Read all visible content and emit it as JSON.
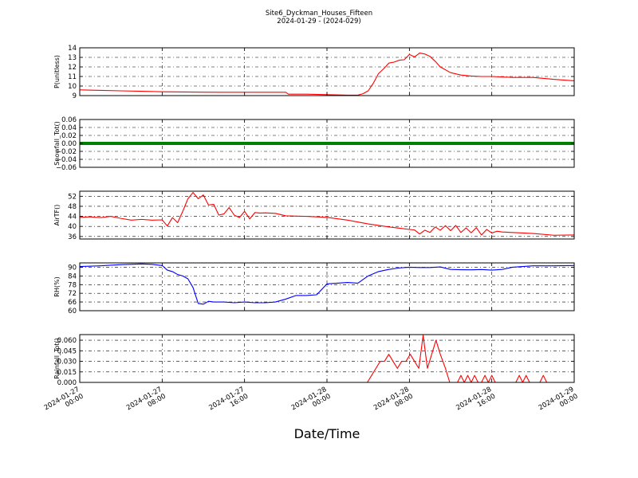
{
  "figure": {
    "title_line1": "Site6_Dyckman_Houses_Fifteen",
    "title_line2": "2024-01-29 - (2024-029)",
    "xlabel": "Date/Time"
  },
  "chart_data": {
    "type": "line",
    "grid": true,
    "xlim": [
      "2024-01-27 00:00",
      "2024-01-29 00:00"
    ],
    "x_ticks": [
      {
        "line1": "2024-01-27",
        "line2": "00:00",
        "value": "2024-01-27 00:00"
      },
      {
        "line1": "2024-01-27",
        "line2": "08:00",
        "value": "2024-01-27 08:00"
      },
      {
        "line1": "2024-01-27",
        "line2": "16:00",
        "value": "2024-01-27 16:00"
      },
      {
        "line1": "2024-01-28",
        "line2": "00:00",
        "value": "2024-01-28 00:00"
      },
      {
        "line1": "2024-01-28",
        "line2": "08:00",
        "value": "2024-01-28 08:00"
      },
      {
        "line1": "2024-01-28",
        "line2": "16:00",
        "value": "2024-01-28 16:00"
      },
      {
        "line1": "2024-01-29",
        "line2": "00:00",
        "value": "2024-01-29 00:00"
      }
    ],
    "panels": [
      {
        "id": "pressure",
        "ylabel": "P(unitless)",
        "ylim": [
          9,
          14
        ],
        "yticks": [
          9,
          10,
          11,
          12,
          13,
          14
        ],
        "ytick_labels": [
          "9",
          "10",
          "11",
          "12",
          "13",
          "14"
        ],
        "color": "#ff0000",
        "style": "line",
        "series": [
          {
            "x": [
              "2024-01-27 00:00",
              "2024-01-27 02:00",
              "2024-01-27 04:00",
              "2024-01-27 06:00",
              "2024-01-27 08:00",
              "2024-01-27 10:00",
              "2024-01-27 12:00",
              "2024-01-27 14:00",
              "2024-01-27 16:00",
              "2024-01-27 18:00",
              "2024-01-27 20:00",
              "2024-01-27 20:15",
              "2024-01-27 22:00",
              "2024-01-28 00:00",
              "2024-01-28 02:00",
              "2024-01-28 03:00",
              "2024-01-28 03:30",
              "2024-01-28 04:00",
              "2024-01-28 04:30",
              "2024-01-28 05:00",
              "2024-01-28 05:30",
              "2024-01-28 06:00",
              "2024-01-28 06:30",
              "2024-01-28 07:00",
              "2024-01-28 07:30",
              "2024-01-28 08:00",
              "2024-01-28 08:30",
              "2024-01-28 09:00",
              "2024-01-28 09:30",
              "2024-01-28 10:00",
              "2024-01-28 10:30",
              "2024-01-28 11:00",
              "2024-01-28 12:00",
              "2024-01-28 13:00",
              "2024-01-28 14:00",
              "2024-01-28 15:00",
              "2024-01-28 16:00",
              "2024-01-28 18:00",
              "2024-01-28 20:00",
              "2024-01-28 22:00",
              "2024-01-29 00:00"
            ],
            "y": [
              9.6,
              9.55,
              9.5,
              9.45,
              9.4,
              9.38,
              9.36,
              9.35,
              9.35,
              9.35,
              9.35,
              9.15,
              9.15,
              9.1,
              9.05,
              9.05,
              9.2,
              9.5,
              10.3,
              11.3,
              11.8,
              12.4,
              12.5,
              12.7,
              12.75,
              13.3,
              13.05,
              13.45,
              13.35,
              13.1,
              12.6,
              12.0,
              11.4,
              11.15,
              11.05,
              11.0,
              11.0,
              10.9,
              10.9,
              10.7,
              10.55
            ]
          }
        ]
      },
      {
        "id": "snowfall",
        "ylabel": "Snowfall_Tot()",
        "ylim": [
          -0.06,
          0.06
        ],
        "yticks": [
          -0.06,
          -0.04,
          -0.02,
          0.0,
          0.02,
          0.04,
          0.06
        ],
        "ytick_labels": [
          "−0.06",
          "−0.04",
          "−0.02",
          "0.00",
          "0.02",
          "0.04",
          "0.06"
        ],
        "color": "#008000",
        "style": "thick",
        "series": [
          {
            "x": [
              "2024-01-27 00:00",
              "2024-01-29 00:00"
            ],
            "y": [
              0.0,
              0.0
            ]
          }
        ]
      },
      {
        "id": "airtemp",
        "ylabel": "AirTF()",
        "ylim": [
          35,
          54
        ],
        "yticks": [
          36,
          40,
          44,
          48,
          52
        ],
        "ytick_labels": [
          "36",
          "40",
          "44",
          "48",
          "52"
        ],
        "color": "#ff0000",
        "style": "line",
        "series": [
          {
            "x": [
              "2024-01-27 00:00",
              "2024-01-27 01:00",
              "2024-01-27 02:00",
              "2024-01-27 03:00",
              "2024-01-27 04:00",
              "2024-01-27 05:00",
              "2024-01-27 06:00",
              "2024-01-27 07:00",
              "2024-01-27 08:00",
              "2024-01-27 08:30",
              "2024-01-27 09:00",
              "2024-01-27 09:30",
              "2024-01-27 10:00",
              "2024-01-27 10:30",
              "2024-01-27 11:00",
              "2024-01-27 11:30",
              "2024-01-27 12:00",
              "2024-01-27 12:30",
              "2024-01-27 13:00",
              "2024-01-27 13:30",
              "2024-01-27 14:00",
              "2024-01-27 14:30",
              "2024-01-27 15:00",
              "2024-01-27 15:30",
              "2024-01-27 16:00",
              "2024-01-27 16:30",
              "2024-01-27 17:00",
              "2024-01-27 17:30",
              "2024-01-27 18:00",
              "2024-01-27 19:00",
              "2024-01-27 20:00",
              "2024-01-27 22:00",
              "2024-01-28 00:00",
              "2024-01-28 02:00",
              "2024-01-28 04:00",
              "2024-01-28 06:00",
              "2024-01-28 08:00",
              "2024-01-28 08:30",
              "2024-01-28 09:00",
              "2024-01-28 09:30",
              "2024-01-28 10:00",
              "2024-01-28 10:30",
              "2024-01-28 11:00",
              "2024-01-28 11:30",
              "2024-01-28 12:00",
              "2024-01-28 12:30",
              "2024-01-28 13:00",
              "2024-01-28 13:30",
              "2024-01-28 14:00",
              "2024-01-28 14:30",
              "2024-01-28 15:00",
              "2024-01-28 15:30",
              "2024-01-28 16:00",
              "2024-01-28 16:30",
              "2024-01-28 17:00",
              "2024-01-28 18:00",
              "2024-01-28 20:00",
              "2024-01-28 22:00",
              "2024-01-29 00:00"
            ],
            "y": [
              43.6,
              43.8,
              43.5,
              44.0,
              43.2,
              42.5,
              42.8,
              42.5,
              42.6,
              40.2,
              43.5,
              41.5,
              46.0,
              51.0,
              53.5,
              51.0,
              52.5,
              48.5,
              48.8,
              44.5,
              45.0,
              47.5,
              44.5,
              43.5,
              46.0,
              43.0,
              45.5,
              45.3,
              45.4,
              45.2,
              44.2,
              44.0,
              43.6,
              42.5,
              41.0,
              39.8,
              38.8,
              38.6,
              37.0,
              38.5,
              37.6,
              39.8,
              38.5,
              40.3,
              38.3,
              40.4,
              37.6,
              39.4,
              37.5,
              39.5,
              36.6,
              38.8,
              37.4,
              38.1,
              37.8,
              37.6,
              37.2,
              36.5,
              36.6
            ]
          }
        ]
      },
      {
        "id": "rh",
        "ylabel": "RH(%)",
        "ylim": [
          60,
          93
        ],
        "yticks": [
          60,
          66,
          72,
          78,
          84,
          90
        ],
        "ytick_labels": [
          "60",
          "66",
          "72",
          "78",
          "84",
          "90"
        ],
        "color": "#0000ff",
        "style": "line",
        "series": [
          {
            "x": [
              "2024-01-27 00:00",
              "2024-01-27 02:00",
              "2024-01-27 04:00",
              "2024-01-27 06:00",
              "2024-01-27 07:00",
              "2024-01-27 08:00",
              "2024-01-27 08:30",
              "2024-01-27 09:00",
              "2024-01-27 09:30",
              "2024-01-27 10:00",
              "2024-01-27 10:30",
              "2024-01-27 11:00",
              "2024-01-27 11:30",
              "2024-01-27 12:00",
              "2024-01-27 12:30",
              "2024-01-27 13:00",
              "2024-01-27 14:00",
              "2024-01-27 15:00",
              "2024-01-27 16:00",
              "2024-01-27 17:00",
              "2024-01-27 18:00",
              "2024-01-27 19:00",
              "2024-01-27 20:00",
              "2024-01-27 21:00",
              "2024-01-27 22:00",
              "2024-01-27 23:00",
              "2024-01-28 00:00",
              "2024-01-28 01:00",
              "2024-01-28 02:00",
              "2024-01-28 03:00",
              "2024-01-28 04:00",
              "2024-01-28 05:00",
              "2024-01-28 06:00",
              "2024-01-28 07:00",
              "2024-01-28 08:00",
              "2024-01-28 09:00",
              "2024-01-28 10:00",
              "2024-01-28 11:00",
              "2024-01-28 12:00",
              "2024-01-28 13:00",
              "2024-01-28 14:00",
              "2024-01-28 15:00",
              "2024-01-28 16:00",
              "2024-01-28 17:00",
              "2024-01-28 18:00",
              "2024-01-28 20:00",
              "2024-01-28 22:00",
              "2024-01-29 00:00"
            ],
            "y": [
              90.5,
              91.0,
              91.8,
              92.3,
              92.0,
              91.2,
              88.0,
              87.0,
              85.0,
              84.0,
              82.0,
              76.0,
              65.0,
              64.5,
              66.5,
              66.0,
              66.0,
              65.5,
              66.0,
              65.5,
              65.5,
              66.0,
              68.0,
              70.5,
              70.5,
              71.0,
              78.5,
              79.0,
              79.5,
              79.0,
              84.0,
              87.0,
              88.5,
              89.5,
              90.0,
              89.8,
              89.8,
              90.2,
              88.5,
              88.3,
              88.2,
              88.4,
              88.0,
              88.5,
              90.0,
              91.0,
              91.0,
              91.2
            ]
          }
        ]
      },
      {
        "id": "rainfall",
        "ylabel": "Rainfall_Tot()",
        "ylim": [
          0,
          0.068
        ],
        "yticks": [
          0.0,
          0.015,
          0.03,
          0.045,
          0.06
        ],
        "ytick_labels": [
          "0.000",
          "0.015",
          "0.030",
          "0.045",
          "0.060"
        ],
        "color": "#ff0000",
        "style": "line",
        "series": [
          {
            "x": [
              "2024-01-27 00:00",
              "2024-01-28 03:55",
              "2024-01-28 04:20",
              "2024-01-28 04:45",
              "2024-01-28 05:10",
              "2024-01-28 05:35",
              "2024-01-28 06:00",
              "2024-01-28 06:25",
              "2024-01-28 06:50",
              "2024-01-28 07:15",
              "2024-01-28 07:40",
              "2024-01-28 08:05",
              "2024-01-28 08:30",
              "2024-01-28 08:55",
              "2024-01-28 09:20",
              "2024-01-28 09:45",
              "2024-01-28 10:10",
              "2024-01-28 10:35",
              "2024-01-28 11:00",
              "2024-01-28 11:30",
              "2024-01-28 11:55",
              "2024-01-28 12:20",
              "2024-01-28 12:40",
              "2024-01-28 13:00",
              "2024-01-28 13:20",
              "2024-01-28 13:40",
              "2024-01-28 14:00",
              "2024-01-28 14:20",
              "2024-01-28 14:40",
              "2024-01-28 15:00",
              "2024-01-28 15:20",
              "2024-01-28 15:40",
              "2024-01-28 16:00",
              "2024-01-28 16:20",
              "2024-01-28 16:40",
              "2024-01-28 18:20",
              "2024-01-28 18:40",
              "2024-01-28 19:00",
              "2024-01-28 19:20",
              "2024-01-28 19:40",
              "2024-01-28 20:40",
              "2024-01-28 21:00",
              "2024-01-28 21:20",
              "2024-01-29 00:00"
            ],
            "y": [
              0,
              0,
              0.01,
              0.02,
              0.03,
              0.03,
              0.04,
              0.03,
              0.02,
              0.03,
              0.03,
              0.04,
              0.03,
              0.02,
              0.067,
              0.02,
              0.04,
              0.06,
              0.04,
              0.02,
              0.0,
              0.0,
              0.0,
              0.01,
              0.0,
              0.01,
              0.0,
              0.01,
              0.0,
              0.0,
              0.01,
              0.0,
              0.01,
              0.0,
              0.0,
              0.0,
              0.01,
              0.0,
              0.01,
              0.0,
              0.0,
              0.01,
              0.0,
              0.0
            ]
          }
        ]
      }
    ]
  }
}
